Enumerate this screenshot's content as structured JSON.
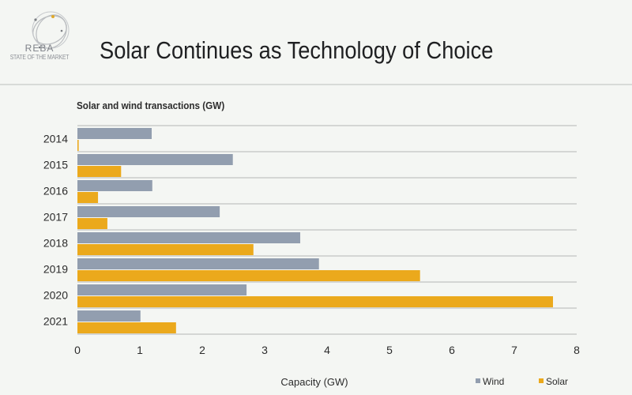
{
  "header": {
    "logo_name": "REBA",
    "logo_subtitle": "STATE OF THE MARKET",
    "title": "Solar Continues as Technology of Choice"
  },
  "colors": {
    "wind": "#929eaf",
    "solar": "#eba91c",
    "grid": "#d4d6d4",
    "text": "#2c2c2c"
  },
  "chart_data": {
    "type": "bar",
    "orientation": "horizontal",
    "title": "Solar and wind transactions (GW)",
    "xlabel": "Capacity (GW)",
    "ylabel": "",
    "categories": [
      "2014",
      "2015",
      "2016",
      "2017",
      "2018",
      "2019",
      "2020",
      "2021"
    ],
    "series": [
      {
        "name": "Wind",
        "values": [
          1.19,
          2.49,
          1.2,
          2.28,
          3.57,
          3.87,
          2.71,
          1.01
        ]
      },
      {
        "name": "Solar",
        "values": [
          0.02,
          0.7,
          0.33,
          0.48,
          2.82,
          5.49,
          7.62,
          1.58
        ]
      }
    ],
    "xlim": [
      0,
      8
    ],
    "xticks": [
      "0",
      "1",
      "2",
      "3",
      "4",
      "5",
      "6",
      "7",
      "8"
    ],
    "grid": "horizontal separators between categories",
    "legend": {
      "position": "bottom-right",
      "entries": [
        "Wind",
        "Solar"
      ]
    }
  }
}
